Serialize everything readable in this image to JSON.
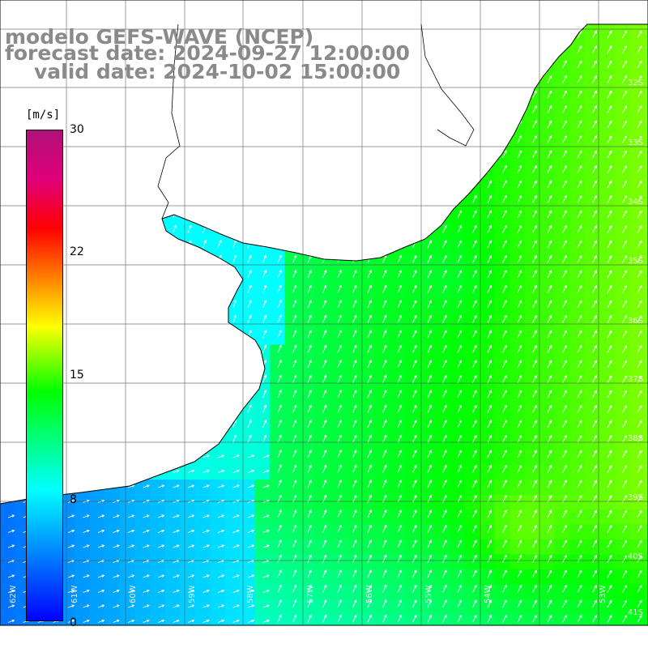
{
  "title": {
    "model": "modelo GEFS-WAVE (NCEP)",
    "forecast": "forecast date: 2024-09-27 12:00:00",
    "valid": "valid date: 2024-10-02 15:00:00"
  },
  "colorbar": {
    "unit": "[m/s]",
    "min": 0,
    "max": 30,
    "ticks": [
      "30",
      "22",
      "15",
      "8",
      "0"
    ],
    "colors": [
      "#0000ff",
      "#00ffff",
      "#00ff00",
      "#ffff00",
      "#ff0000",
      "#b0107a"
    ]
  },
  "map": {
    "land_color": "#ffffff",
    "grid_color": "#555555",
    "arrow_color": "#ffffff",
    "right_lat_labels": [
      "32S",
      "33S",
      "34S",
      "35S",
      "36S",
      "37S",
      "38S",
      "39S",
      "40S",
      "41S"
    ],
    "bottom_lon_labels": [
      "62W",
      "61W",
      "60W",
      "59W",
      "58W",
      "57W",
      "56W",
      "55W",
      "54W",
      "53W"
    ]
  }
}
